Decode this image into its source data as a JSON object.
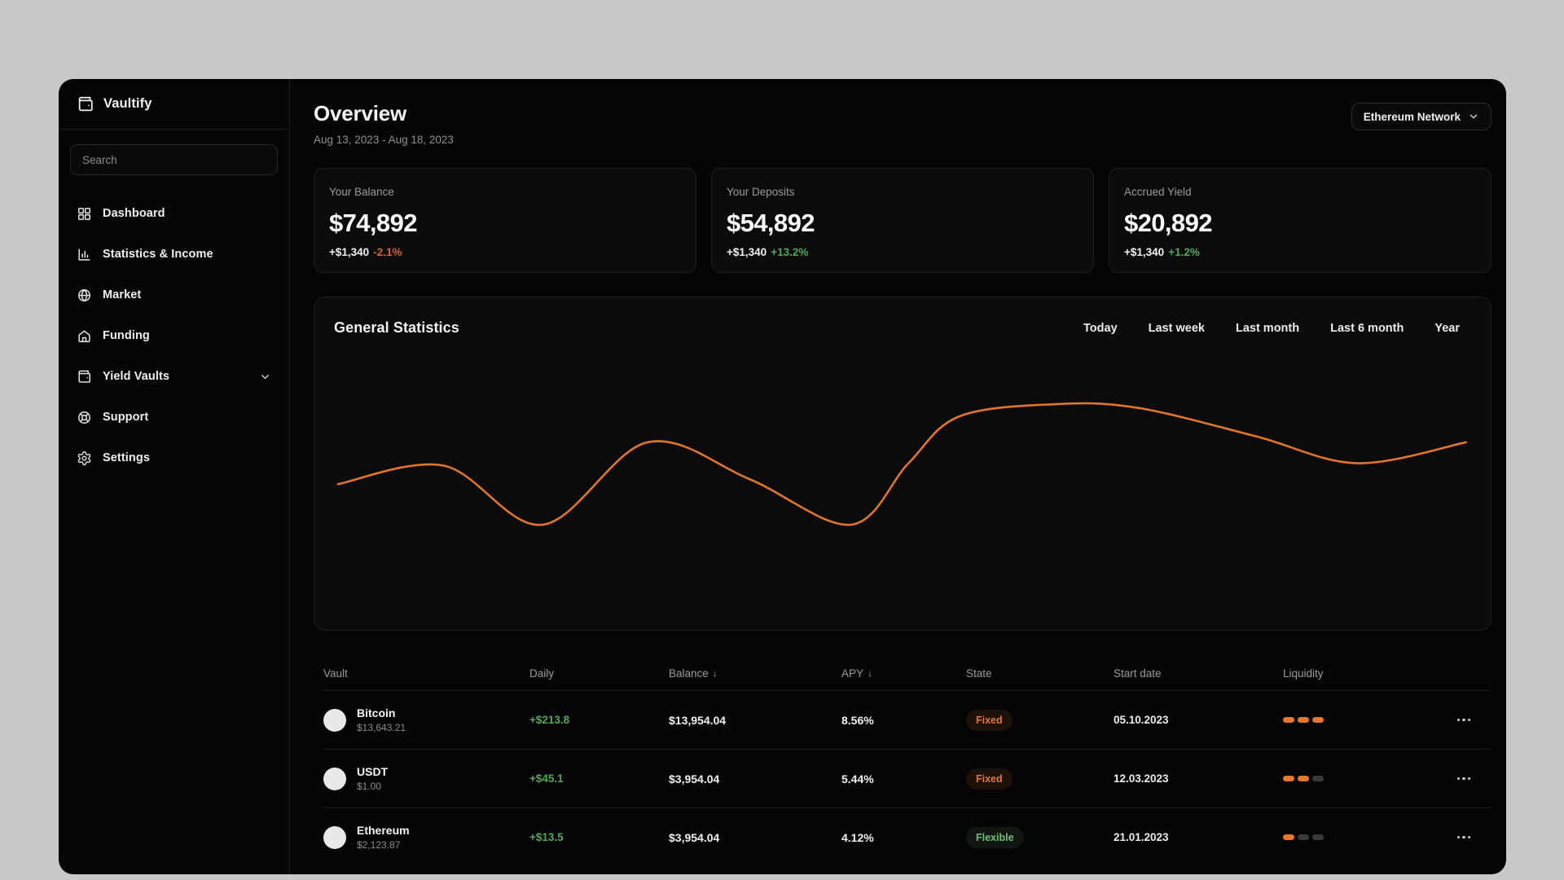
{
  "app": {
    "name": "Vaultify"
  },
  "colors": {
    "accent_orange": "#e8772e",
    "positive_green": "#54a65a",
    "negative_orange": "#cf6434",
    "app_background": "#050505",
    "page_background": "#c8c8c8"
  },
  "sidebar": {
    "logo": "Vaultify",
    "search_placeholder": "Search",
    "items": [
      {
        "label": "Dashboard",
        "icon": "dashboard-grid-icon"
      },
      {
        "label": "Statistics & Income",
        "icon": "bar-chart-icon"
      },
      {
        "label": "Market",
        "icon": "globe-icon"
      },
      {
        "label": "Funding",
        "icon": "home-icon"
      },
      {
        "label": "Yield Vaults",
        "icon": "wallet-icon",
        "chevron": true
      },
      {
        "label": "Support",
        "icon": "lifebuoy-icon"
      },
      {
        "label": "Settings",
        "icon": "gear-icon"
      }
    ]
  },
  "header": {
    "title": "Overview",
    "date_range": "Aug 13, 2023 - Aug 18, 2023",
    "network_selector": "Ethereum Network"
  },
  "stat_cards": [
    {
      "label": "Your Balance",
      "value": "$74,892",
      "delta": "+$1,340",
      "pct": "-2.1%",
      "pct_color": "#cf6434"
    },
    {
      "label": "Your Deposits",
      "value": "$54,892",
      "delta": "+$1,340",
      "pct": "+13.2%",
      "pct_color": "#54a65a"
    },
    {
      "label": "Accrued Yield",
      "value": "$20,892",
      "delta": "+$1,340",
      "pct": "+1.2%",
      "pct_color": "#54a65a"
    }
  ],
  "statistics_panel": {
    "title": "General Statistics",
    "filters": [
      "Today",
      "Last week",
      "Last month",
      "Last 6 month",
      "Year"
    ]
  },
  "chart_data": {
    "type": "line",
    "title": "General Statistics",
    "xlabel": "",
    "ylabel": "",
    "axes_visible": false,
    "grid": false,
    "legend": "none",
    "line_color": "#e0752e",
    "series": [
      {
        "name": "portfolio-value-curve",
        "points_norm": [
          [
            0.02,
            0.67
          ],
          [
            0.11,
            0.52
          ],
          [
            0.194,
            1.0
          ],
          [
            0.283,
            0.33
          ],
          [
            0.37,
            0.63
          ],
          [
            0.456,
            1.0
          ],
          [
            0.505,
            0.5
          ],
          [
            0.548,
            0.12
          ],
          [
            0.63,
            0.02
          ],
          [
            0.7,
            0.05
          ],
          [
            0.8,
            0.28
          ],
          [
            0.886,
            0.5
          ],
          [
            0.979,
            0.33
          ]
        ]
      }
    ]
  },
  "table": {
    "columns": [
      {
        "label": "Vault"
      },
      {
        "label": "Daily"
      },
      {
        "label": "Balance",
        "sort": "↓"
      },
      {
        "label": "APY",
        "sort": "↓"
      },
      {
        "label": "State"
      },
      {
        "label": "Start date"
      },
      {
        "label": "Liquidity"
      }
    ],
    "rows": [
      {
        "name": "Bitcoin",
        "price": "$13,643.21",
        "daily": "+$213.8",
        "daily_color": "#54a65a",
        "balance": "$13,954.04",
        "apy": "8.56%",
        "state": "Fixed",
        "state_type": "fixed",
        "start_date": "05.10.2023",
        "liquidity_filled": 3,
        "liquidity_total": 3
      },
      {
        "name": "USDT",
        "price": "$1.00",
        "daily": "+$45.1",
        "daily_color": "#54a65a",
        "balance": "$3,954.04",
        "apy": "5.44%",
        "state": "Fixed",
        "state_type": "fixed",
        "start_date": "12.03.2023",
        "liquidity_filled": 2,
        "liquidity_total": 3
      },
      {
        "name": "Ethereum",
        "price": "$2,123.87",
        "daily": "+$13.5",
        "daily_color": "#54a65a",
        "balance": "$3,954.04",
        "apy": "4.12%",
        "state": "Flexible",
        "state_type": "flexible",
        "start_date": "21.01.2023",
        "liquidity_filled": 1,
        "liquidity_total": 3
      }
    ]
  }
}
